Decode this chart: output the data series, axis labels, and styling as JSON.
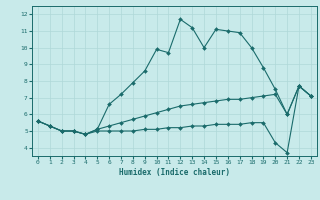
{
  "xlabel": "Humidex (Indice chaleur)",
  "ylabel": "",
  "bg_color": "#c8eaea",
  "grid_color": "#afd8d8",
  "line_color": "#1a6b6b",
  "xlim": [
    -0.5,
    23.5
  ],
  "ylim": [
    3.5,
    12.5
  ],
  "xticks": [
    0,
    1,
    2,
    3,
    4,
    5,
    6,
    7,
    8,
    9,
    10,
    11,
    12,
    13,
    14,
    15,
    16,
    17,
    18,
    19,
    20,
    21,
    22,
    23
  ],
  "yticks": [
    4,
    5,
    6,
    7,
    8,
    9,
    10,
    11,
    12
  ],
  "series": [
    [
      5.6,
      5.3,
      5.0,
      5.0,
      4.8,
      5.1,
      6.6,
      7.2,
      7.9,
      8.6,
      9.9,
      9.7,
      11.7,
      11.2,
      10.0,
      11.1,
      11.0,
      10.9,
      10.0,
      8.8,
      7.5,
      6.0,
      7.7,
      7.1
    ],
    [
      5.6,
      5.3,
      5.0,
      5.0,
      4.8,
      5.1,
      5.3,
      5.5,
      5.7,
      5.9,
      6.1,
      6.3,
      6.5,
      6.6,
      6.7,
      6.8,
      6.9,
      6.9,
      7.0,
      7.1,
      7.2,
      6.0,
      7.7,
      7.1
    ],
    [
      5.6,
      5.3,
      5.0,
      5.0,
      4.8,
      5.0,
      5.0,
      5.0,
      5.0,
      5.1,
      5.1,
      5.2,
      5.2,
      5.3,
      5.3,
      5.4,
      5.4,
      5.4,
      5.5,
      5.5,
      4.3,
      3.7,
      7.7,
      7.1
    ]
  ],
  "xlabel_fontsize": 5.5,
  "tick_fontsize": 4.5,
  "marker_size": 2.0,
  "line_width": 0.8
}
